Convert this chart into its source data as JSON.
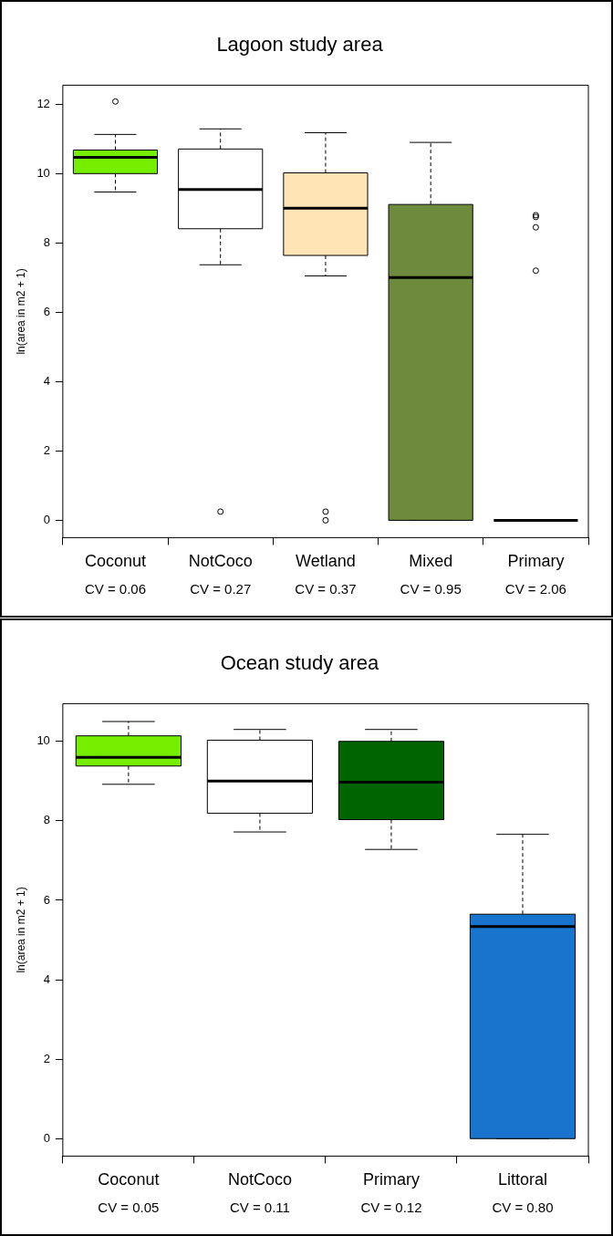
{
  "chart_data": [
    {
      "type": "box",
      "title": "Lagoon study area",
      "ylabel": "ln(area in m2 + 1)",
      "categories": [
        "Coconut",
        "NotCoco",
        "Wetland",
        "Mixed",
        "Primary"
      ],
      "colors": [
        "#76ee00",
        "#ffffff",
        "#ffe4b5",
        "#6e8b3d",
        "#000000"
      ],
      "boxes": [
        {
          "low": 9.47,
          "q1": 10.0,
          "median": 10.47,
          "q3": 10.68,
          "high": 11.13,
          "outliers": [
            12.08
          ]
        },
        {
          "low": 7.37,
          "q1": 8.41,
          "median": 9.54,
          "q3": 10.71,
          "high": 11.29,
          "outliers": [
            0.25
          ]
        },
        {
          "low": 7.05,
          "q1": 7.64,
          "median": 9.0,
          "q3": 10.02,
          "high": 11.18,
          "outliers": [
            0.25,
            0
          ]
        },
        {
          "low": 0,
          "q1": 0,
          "median": 7.0,
          "q3": 9.11,
          "high": 10.9
        },
        {
          "low": 0,
          "q1": 0,
          "median": 0,
          "q3": 0,
          "high": 0,
          "outliers": [
            8.8,
            8.75,
            8.45,
            7.2
          ]
        }
      ],
      "ylim": [
        -0.5,
        12.55
      ],
      "yticks": [
        0,
        2,
        4,
        6,
        8,
        10,
        12
      ],
      "grid": false,
      "annotations": [
        "CV = 0.06",
        "CV = 0.27",
        "CV = 0.37",
        "CV = 0.95",
        "CV = 2.06"
      ]
    },
    {
      "type": "box",
      "title": "Ocean study area",
      "ylabel": "ln(area in m2 + 1)",
      "categories": [
        "Coconut",
        "NotCoco",
        "Primary",
        "Littoral"
      ],
      "colors": [
        "#76ee00",
        "#ffffff",
        "#006400",
        "#1874cd"
      ],
      "boxes": [
        {
          "low": 8.92,
          "q1": 9.38,
          "median": 9.6,
          "q3": 10.14,
          "high": 10.5
        },
        {
          "low": 7.72,
          "q1": 8.19,
          "median": 9.0,
          "q3": 10.03,
          "high": 10.3
        },
        {
          "low": 7.28,
          "q1": 8.03,
          "median": 8.97,
          "q3": 10.0,
          "high": 10.3
        },
        {
          "low": 0,
          "q1": 0,
          "median": 5.34,
          "q3": 5.65,
          "high": 7.66
        }
      ],
      "ylim": [
        -0.44,
        10.95
      ],
      "yticks": [
        0,
        2,
        4,
        6,
        8,
        10
      ],
      "grid": false,
      "annotations": [
        "CV = 0.05",
        "CV = 0.11",
        "CV = 0.12",
        "CV = 0.80"
      ]
    }
  ]
}
